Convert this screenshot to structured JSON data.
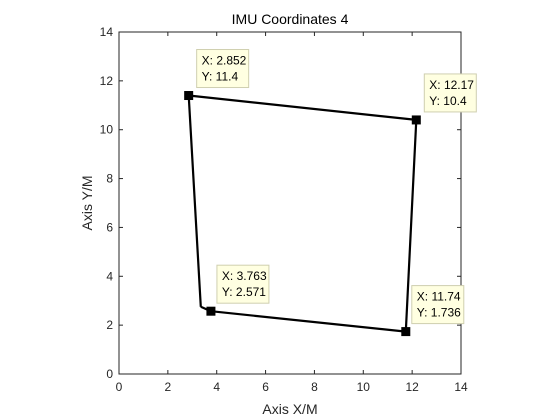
{
  "chart_data": {
    "type": "line",
    "title": "IMU Coordinates 4",
    "xlabel": "Axis X/M",
    "ylabel": "Axis Y/M",
    "xlim": [
      0,
      14
    ],
    "ylim": [
      0,
      14
    ],
    "xticks": [
      "0",
      "2",
      "4",
      "6",
      "8",
      "10",
      "12",
      "14"
    ],
    "yticks": [
      "0",
      "2",
      "4",
      "6",
      "8",
      "10",
      "12",
      "14"
    ],
    "grid": false,
    "line_color": "#000000",
    "path": [
      {
        "x": 3.35,
        "y": 2.75
      },
      {
        "x": 3.763,
        "y": 2.571
      },
      {
        "x": 11.74,
        "y": 1.736
      },
      {
        "x": 12.17,
        "y": 10.4
      },
      {
        "x": 2.852,
        "y": 11.4
      },
      {
        "x": 3.35,
        "y": 2.75
      }
    ],
    "markers": [
      {
        "x": 2.852,
        "y": 11.4,
        "label_x": "X: 2.852",
        "label_y": "Y: 11.4"
      },
      {
        "x": 12.17,
        "y": 10.4,
        "label_x": "X: 12.17",
        "label_y": "Y: 10.4"
      },
      {
        "x": 3.763,
        "y": 2.571,
        "label_x": "X: 3.763",
        "label_y": "Y: 2.571"
      },
      {
        "x": 11.74,
        "y": 1.736,
        "label_x": "X: 11.74",
        "label_y": "Y: 1.736"
      }
    ]
  }
}
